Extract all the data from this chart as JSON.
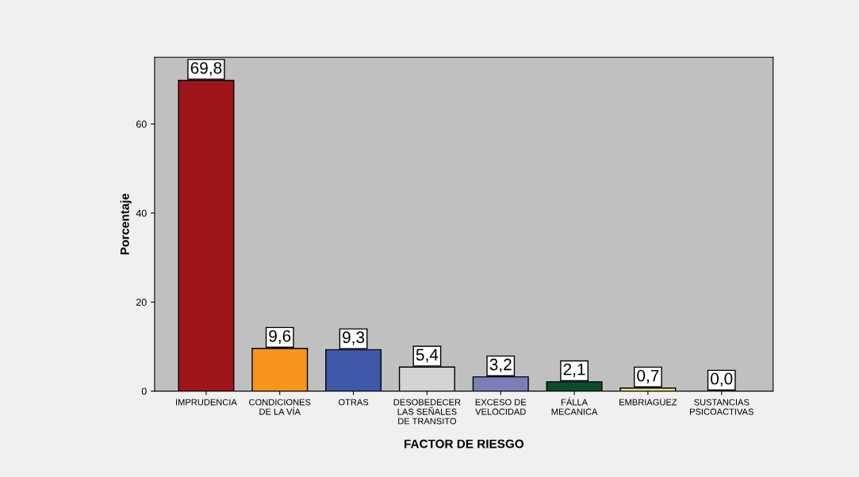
{
  "chart_data": {
    "type": "bar",
    "xlabel": "FACTOR DE RIESGO",
    "ylabel": "Porcentaje",
    "categories": [
      "IMPRUDENCIA",
      "CONDICIONES\nDE LA VÍA",
      "OTRAS",
      "DESOBEDECER\nLAS SEÑALES\nDE TRANSITO",
      "EXCESO DE\nVELOCIDAD",
      "FÁLLA\nMECANICA",
      "EMBRIAGUEZ",
      "SUSTANCIAS\nPSICOACTIVAS"
    ],
    "values": [
      69.8,
      9.6,
      9.3,
      5.4,
      3.2,
      2.1,
      0.7,
      0.0
    ],
    "value_labels": [
      "69,8",
      "9,6",
      "9,3",
      "5,4",
      "3,2",
      "2,1",
      "0,7",
      "0,0"
    ],
    "colors": [
      "#a0151a",
      "#f7941d",
      "#3f58a8",
      "#d3d3d3",
      "#7b7fb8",
      "#0b4d2a",
      "#e8e87a",
      "#ffffff"
    ],
    "ylim": [
      0,
      75
    ],
    "yticks": [
      0,
      20,
      40,
      60
    ],
    "grid": false,
    "legend": false
  }
}
